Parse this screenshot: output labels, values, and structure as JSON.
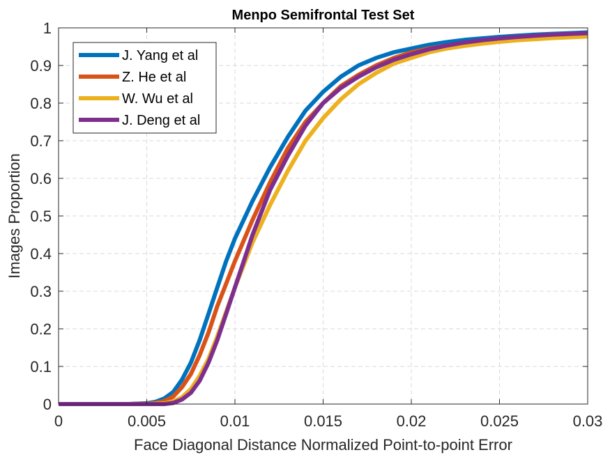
{
  "chart_data": {
    "type": "line",
    "title": "Menpo Semifrontal Test Set",
    "xlabel": "Face Diagonal Distance Normalized Point-to-point Error",
    "ylabel": "Images Proportion",
    "xlim": [
      0,
      0.03
    ],
    "ylim": [
      0,
      1
    ],
    "xticks": [
      0,
      0.005,
      0.01,
      0.015,
      0.02,
      0.025,
      0.03
    ],
    "xtick_labels": [
      "0",
      "0.005",
      "0.01",
      "0.015",
      "0.02",
      "0.025",
      "0.03"
    ],
    "yticks": [
      0,
      0.1,
      0.2,
      0.3,
      0.4,
      0.5,
      0.6,
      0.7,
      0.8,
      0.9,
      1
    ],
    "ytick_labels": [
      "0",
      "0.1",
      "0.2",
      "0.3",
      "0.4",
      "0.5",
      "0.6",
      "0.7",
      "0.8",
      "0.9",
      "1"
    ],
    "grid": true,
    "legend_position": "top-left",
    "series": [
      {
        "name": "J. Yang et al",
        "color": "#0072BD",
        "points": [
          [
            0,
            0
          ],
          [
            0.004,
            0
          ],
          [
            0.005,
            0.002
          ],
          [
            0.0055,
            0.006
          ],
          [
            0.006,
            0.015
          ],
          [
            0.0065,
            0.032
          ],
          [
            0.007,
            0.065
          ],
          [
            0.0075,
            0.11
          ],
          [
            0.008,
            0.17
          ],
          [
            0.0085,
            0.24
          ],
          [
            0.009,
            0.31
          ],
          [
            0.0095,
            0.38
          ],
          [
            0.01,
            0.44
          ],
          [
            0.011,
            0.54
          ],
          [
            0.012,
            0.63
          ],
          [
            0.013,
            0.71
          ],
          [
            0.014,
            0.78
          ],
          [
            0.015,
            0.83
          ],
          [
            0.016,
            0.87
          ],
          [
            0.017,
            0.9
          ],
          [
            0.018,
            0.92
          ],
          [
            0.019,
            0.935
          ],
          [
            0.02,
            0.945
          ],
          [
            0.021,
            0.955
          ],
          [
            0.022,
            0.962
          ],
          [
            0.023,
            0.968
          ],
          [
            0.024,
            0.972
          ],
          [
            0.025,
            0.976
          ],
          [
            0.026,
            0.979
          ],
          [
            0.027,
            0.982
          ],
          [
            0.028,
            0.984
          ],
          [
            0.029,
            0.986
          ],
          [
            0.03,
            0.988
          ]
        ]
      },
      {
        "name": "Z. He et al",
        "color": "#D95319",
        "points": [
          [
            0,
            0
          ],
          [
            0.004,
            0
          ],
          [
            0.005,
            0.001
          ],
          [
            0.0055,
            0.003
          ],
          [
            0.006,
            0.008
          ],
          [
            0.0065,
            0.02
          ],
          [
            0.007,
            0.045
          ],
          [
            0.0075,
            0.08
          ],
          [
            0.008,
            0.13
          ],
          [
            0.0085,
            0.19
          ],
          [
            0.009,
            0.26
          ],
          [
            0.0095,
            0.32
          ],
          [
            0.01,
            0.38
          ],
          [
            0.011,
            0.49
          ],
          [
            0.012,
            0.59
          ],
          [
            0.013,
            0.68
          ],
          [
            0.014,
            0.75
          ],
          [
            0.015,
            0.8
          ],
          [
            0.016,
            0.845
          ],
          [
            0.017,
            0.875
          ],
          [
            0.018,
            0.9
          ],
          [
            0.019,
            0.92
          ],
          [
            0.02,
            0.935
          ],
          [
            0.021,
            0.945
          ],
          [
            0.022,
            0.953
          ],
          [
            0.023,
            0.96
          ],
          [
            0.024,
            0.965
          ],
          [
            0.025,
            0.97
          ],
          [
            0.026,
            0.973
          ],
          [
            0.027,
            0.976
          ],
          [
            0.028,
            0.978
          ],
          [
            0.029,
            0.98
          ],
          [
            0.03,
            0.982
          ]
        ]
      },
      {
        "name": "W. Wu et al",
        "color": "#EDB120",
        "points": [
          [
            0,
            0
          ],
          [
            0.005,
            0
          ],
          [
            0.006,
            0.002
          ],
          [
            0.0065,
            0.007
          ],
          [
            0.007,
            0.018
          ],
          [
            0.0075,
            0.04
          ],
          [
            0.008,
            0.075
          ],
          [
            0.0085,
            0.12
          ],
          [
            0.009,
            0.18
          ],
          [
            0.0095,
            0.245
          ],
          [
            0.01,
            0.31
          ],
          [
            0.0105,
            0.37
          ],
          [
            0.011,
            0.43
          ],
          [
            0.012,
            0.53
          ],
          [
            0.013,
            0.62
          ],
          [
            0.014,
            0.7
          ],
          [
            0.015,
            0.76
          ],
          [
            0.016,
            0.81
          ],
          [
            0.017,
            0.85
          ],
          [
            0.018,
            0.88
          ],
          [
            0.019,
            0.905
          ],
          [
            0.02,
            0.92
          ],
          [
            0.021,
            0.935
          ],
          [
            0.022,
            0.945
          ],
          [
            0.023,
            0.952
          ],
          [
            0.024,
            0.958
          ],
          [
            0.025,
            0.963
          ],
          [
            0.026,
            0.967
          ],
          [
            0.027,
            0.97
          ],
          [
            0.028,
            0.973
          ],
          [
            0.029,
            0.975
          ],
          [
            0.03,
            0.977
          ]
        ]
      },
      {
        "name": "J. Deng et al",
        "color": "#7E2F8E",
        "points": [
          [
            0,
            0
          ],
          [
            0.006,
            0
          ],
          [
            0.0065,
            0.003
          ],
          [
            0.007,
            0.012
          ],
          [
            0.0075,
            0.03
          ],
          [
            0.008,
            0.062
          ],
          [
            0.0085,
            0.11
          ],
          [
            0.009,
            0.17
          ],
          [
            0.0095,
            0.24
          ],
          [
            0.01,
            0.31
          ],
          [
            0.0105,
            0.38
          ],
          [
            0.011,
            0.45
          ],
          [
            0.012,
            0.57
          ],
          [
            0.013,
            0.66
          ],
          [
            0.014,
            0.74
          ],
          [
            0.015,
            0.8
          ],
          [
            0.016,
            0.84
          ],
          [
            0.017,
            0.87
          ],
          [
            0.018,
            0.895
          ],
          [
            0.019,
            0.915
          ],
          [
            0.02,
            0.93
          ],
          [
            0.021,
            0.943
          ],
          [
            0.022,
            0.953
          ],
          [
            0.023,
            0.961
          ],
          [
            0.024,
            0.967
          ],
          [
            0.025,
            0.972
          ],
          [
            0.026,
            0.976
          ],
          [
            0.027,
            0.979
          ],
          [
            0.028,
            0.982
          ],
          [
            0.029,
            0.984
          ],
          [
            0.03,
            0.986
          ]
        ]
      }
    ]
  }
}
